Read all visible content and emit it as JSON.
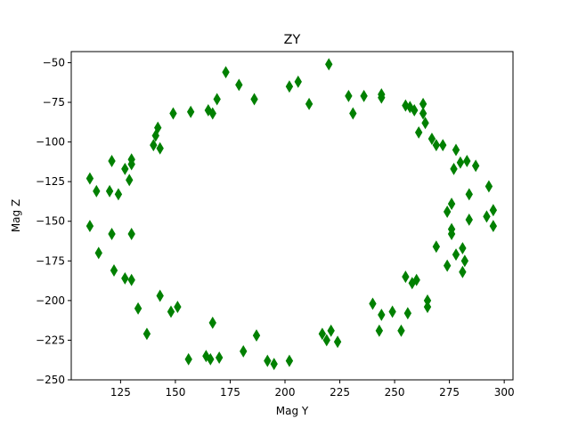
{
  "chart_data": {
    "type": "scatter",
    "title": "ZY",
    "xlabel": "Mag Y",
    "ylabel": "Mag Z",
    "xlim": [
      102.5,
      304
    ],
    "ylim": [
      -250,
      -43
    ],
    "xticks": [
      125,
      150,
      175,
      200,
      225,
      250,
      275,
      300
    ],
    "yticks": [
      -250,
      -225,
      -200,
      -175,
      -150,
      -125,
      -100,
      -75,
      -50
    ],
    "grid": false,
    "marker": "thin_diamond",
    "color": "#008000",
    "points": [
      [
        111,
        -123
      ],
      [
        111,
        -153
      ],
      [
        114,
        -131
      ],
      [
        115,
        -170
      ],
      [
        120,
        -131
      ],
      [
        121,
        -112
      ],
      [
        121,
        -158
      ],
      [
        122,
        -181
      ],
      [
        124,
        -133
      ],
      [
        127,
        -117
      ],
      [
        127,
        -186
      ],
      [
        129,
        -124
      ],
      [
        130,
        -111
      ],
      [
        130,
        -114
      ],
      [
        130,
        -158
      ],
      [
        130,
        -187
      ],
      [
        133,
        -205
      ],
      [
        137,
        -221
      ],
      [
        140,
        -102
      ],
      [
        141,
        -96
      ],
      [
        142,
        -91
      ],
      [
        143,
        -104
      ],
      [
        143,
        -197
      ],
      [
        148,
        -207
      ],
      [
        149,
        -82
      ],
      [
        151,
        -204
      ],
      [
        156,
        -237
      ],
      [
        157,
        -81
      ],
      [
        164,
        -235
      ],
      [
        165,
        -80
      ],
      [
        166,
        -237
      ],
      [
        167,
        -82
      ],
      [
        167,
        -214
      ],
      [
        169,
        -73
      ],
      [
        170,
        -236
      ],
      [
        173,
        -56
      ],
      [
        179,
        -64
      ],
      [
        181,
        -232
      ],
      [
        186,
        -73
      ],
      [
        187,
        -222
      ],
      [
        192,
        -238
      ],
      [
        195,
        -240
      ],
      [
        202,
        -65
      ],
      [
        202,
        -238
      ],
      [
        206,
        -62
      ],
      [
        211,
        -76
      ],
      [
        217,
        -221
      ],
      [
        219,
        -225
      ],
      [
        220,
        -51
      ],
      [
        221,
        -219
      ],
      [
        224,
        -226
      ],
      [
        229,
        -71
      ],
      [
        231,
        -82
      ],
      [
        236,
        -71
      ],
      [
        240,
        -202
      ],
      [
        243,
        -219
      ],
      [
        244,
        -70
      ],
      [
        244,
        -72
      ],
      [
        244,
        -209
      ],
      [
        249,
        -207
      ],
      [
        253,
        -219
      ],
      [
        255,
        -77
      ],
      [
        255,
        -185
      ],
      [
        256,
        -208
      ],
      [
        257,
        -78
      ],
      [
        258,
        -189
      ],
      [
        259,
        -80
      ],
      [
        260,
        -187
      ],
      [
        261,
        -94
      ],
      [
        263,
        -76
      ],
      [
        263,
        -82
      ],
      [
        264,
        -88
      ],
      [
        265,
        -200
      ],
      [
        265,
        -204
      ],
      [
        267,
        -98
      ],
      [
        269,
        -102
      ],
      [
        269,
        -166
      ],
      [
        272,
        -102
      ],
      [
        274,
        -144
      ],
      [
        274,
        -178
      ],
      [
        276,
        -139
      ],
      [
        276,
        -155
      ],
      [
        276,
        -158
      ],
      [
        277,
        -117
      ],
      [
        278,
        -105
      ],
      [
        278,
        -171
      ],
      [
        280,
        -113
      ],
      [
        281,
        -167
      ],
      [
        281,
        -182
      ],
      [
        282,
        -175
      ],
      [
        283,
        -112
      ],
      [
        284,
        -133
      ],
      [
        284,
        -149
      ],
      [
        287,
        -115
      ],
      [
        292,
        -147
      ],
      [
        293,
        -128
      ],
      [
        295,
        -143
      ],
      [
        295,
        -153
      ]
    ]
  }
}
